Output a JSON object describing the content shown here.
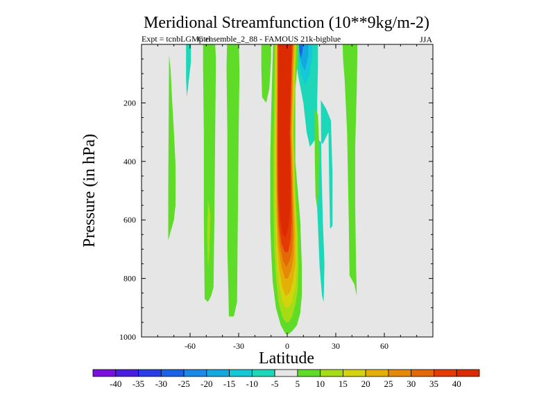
{
  "chart_data": {
    "type": "heatmap",
    "title": "Meridional Streamfunction (10**9kg/m-2)",
    "subtitle_left": "Expt = tcnbLGMp ensemble_2_88 - FAMOUS 21k-bigblue",
    "overlap_text": "Ctrl",
    "subtitle_right": "JJA",
    "xlabel": "Latitude",
    "ylabel": "Pressure (in hPa)",
    "xlim": [
      -90,
      90
    ],
    "ylim": [
      1000,
      0
    ],
    "x_ticks": [
      -60,
      -30,
      0,
      30,
      60
    ],
    "x_tick_labels": [
      "-60",
      "-30",
      "0",
      "30",
      "60"
    ],
    "y_ticks": [
      200,
      400,
      600,
      800,
      1000
    ],
    "y_tick_labels": [
      "200",
      "400",
      "600",
      "800",
      "1000"
    ],
    "background_color": "#e6e6e6",
    "contour_levels": [
      -40,
      -35,
      -30,
      -25,
      -20,
      -15,
      -10,
      -5,
      5,
      10,
      15,
      20,
      25,
      30,
      35,
      40
    ],
    "colorbar_labels": [
      "-40",
      "-35",
      "-30",
      "-25",
      "-20",
      "-15",
      "-10",
      "-5",
      "5",
      "10",
      "15",
      "20",
      "25",
      "30",
      "35",
      "40"
    ],
    "colorbar_colors": [
      "#7a10e0",
      "#4a1ee0",
      "#2a3ee8",
      "#1a62e8",
      "#1a8ae6",
      "#12a8e0",
      "#14c8d8",
      "#1cd8b8",
      "#e6e6e6",
      "#5edc28",
      "#a6dc16",
      "#d4d40e",
      "#e4b008",
      "#e48a08",
      "#e46808",
      "#e43a06",
      "#dc2a02"
    ],
    "contours": [
      {
        "name": "green-band-far-south",
        "value": 5,
        "color": "#5edc28",
        "points": [
          [
            -73,
            0.35
          ],
          [
            -72,
            0.9
          ],
          [
            -71,
            2
          ],
          [
            -70,
            3
          ],
          [
            -69,
            4.1
          ],
          [
            -69,
            5.5
          ],
          [
            -70,
            6
          ],
          [
            -72,
            6.4
          ],
          [
            -73.5,
            6.7
          ],
          [
            -73.5,
            5
          ]
        ]
      },
      {
        "name": "cyan-upper-south",
        "value": -5,
        "color": "#1cd8b8",
        "points": [
          [
            -62.5,
            -0.5
          ],
          [
            -59.5,
            -0.5
          ],
          [
            -59.5,
            0.6
          ],
          [
            -60.5,
            1.1
          ],
          [
            -62,
            1.8
          ],
          [
            -62.5,
            1.2
          ]
        ]
      },
      {
        "name": "green-band-south",
        "value": 5,
        "color": "#5edc28",
        "points": [
          [
            -52,
            -0.5
          ],
          [
            -45,
            -0.5
          ],
          [
            -44,
            0.5
          ],
          [
            -44.5,
            3
          ],
          [
            -45,
            6
          ],
          [
            -45.5,
            8.3
          ],
          [
            -47,
            8.6
          ],
          [
            -49,
            8.8
          ],
          [
            -51,
            8.7
          ],
          [
            -51.5,
            6
          ],
          [
            -51.5,
            3
          ],
          [
            -52,
            0.8
          ]
        ]
      },
      {
        "name": "green-band-south-inner",
        "value": 10,
        "color": "#a6dc16",
        "points": [
          [
            -49,
            5.3
          ],
          [
            -47.5,
            5.8
          ],
          [
            -48,
            7
          ],
          [
            -49,
            7.7
          ],
          [
            -49.5,
            6.5
          ]
        ]
      },
      {
        "name": "green-band-mid-south",
        "value": 5,
        "color": "#5edc28",
        "points": [
          [
            -37,
            -0.5
          ],
          [
            -30,
            -0.5
          ],
          [
            -29.5,
            1
          ],
          [
            -30,
            3
          ],
          [
            -30.5,
            6
          ],
          [
            -31,
            8.8
          ],
          [
            -33,
            9.3
          ],
          [
            -36,
            9.3
          ],
          [
            -37,
            7
          ],
          [
            -37,
            3
          ],
          [
            -37.5,
            0.8
          ]
        ]
      },
      {
        "name": "green-band-near-eq-south",
        "value": 5,
        "color": "#5edc28",
        "points": [
          [
            -16,
            -0.5
          ],
          [
            -10,
            -0.5
          ],
          [
            -10,
            0.5
          ],
          [
            -11,
            1.5
          ],
          [
            -13,
            2
          ],
          [
            -15.5,
            1.8
          ],
          [
            -16,
            0.8
          ]
        ]
      },
      {
        "name": "cyan-band-north",
        "value": -5,
        "color": "#1cd8b8",
        "points": [
          [
            5,
            -0.5
          ],
          [
            19,
            -0.5
          ],
          [
            19,
            0.8
          ],
          [
            18.5,
            2
          ],
          [
            18.5,
            3.5
          ],
          [
            18,
            5
          ],
          [
            19,
            6.2
          ],
          [
            20,
            7.6
          ],
          [
            21.5,
            8.6
          ],
          [
            22.5,
            8.8
          ],
          [
            23,
            7.5
          ],
          [
            22,
            6
          ],
          [
            21,
            3.8
          ],
          [
            20.8,
            1.9
          ],
          [
            24,
            2.2
          ],
          [
            27,
            2.6
          ],
          [
            28,
            4.5
          ],
          [
            28,
            6.2
          ],
          [
            26.5,
            6.3
          ],
          [
            26,
            5
          ],
          [
            25.5,
            3
          ],
          [
            22,
            3.4
          ],
          [
            18,
            3.2
          ],
          [
            14,
            3.5
          ],
          [
            12,
            3
          ],
          [
            10,
            2
          ],
          [
            6.5,
            1
          ],
          [
            5,
            0.2
          ]
        ]
      },
      {
        "name": "green-band-north-mid",
        "value": 5,
        "color": "#5edc28",
        "points": [
          [
            17,
            2.2
          ],
          [
            19,
            2.4
          ],
          [
            20,
            3.8
          ],
          [
            19.5,
            5
          ],
          [
            18.5,
            5.6
          ],
          [
            17.5,
            5.2
          ],
          [
            17,
            3.8
          ]
        ]
      },
      {
        "name": "green-band-north",
        "value": 5,
        "color": "#5edc28",
        "points": [
          [
            34,
            -0.5
          ],
          [
            43.5,
            -0.5
          ],
          [
            43,
            1.5
          ],
          [
            42,
            3.5
          ],
          [
            42,
            5.5
          ],
          [
            42.5,
            7.5
          ],
          [
            43,
            8.6
          ],
          [
            41.5,
            8.2
          ],
          [
            38.5,
            7.9
          ],
          [
            38,
            6
          ],
          [
            37,
            3
          ],
          [
            35.5,
            1.2
          ],
          [
            34.5,
            0.5
          ]
        ]
      },
      {
        "name": "blue-band-north-outer",
        "value": -10,
        "color": "#14c8d8",
        "points": [
          [
            6.5,
            -0.5
          ],
          [
            15.5,
            -0.5
          ],
          [
            15.5,
            0.4
          ],
          [
            13.5,
            1.1
          ],
          [
            11,
            1.4
          ],
          [
            8.5,
            1
          ],
          [
            7,
            0.4
          ]
        ]
      },
      {
        "name": "blue-band-north-mid",
        "value": -15,
        "color": "#12a8e0",
        "points": [
          [
            7,
            -0.5
          ],
          [
            13.5,
            -0.5
          ],
          [
            13,
            0.4
          ],
          [
            11,
            0.9
          ],
          [
            9,
            0.7
          ],
          [
            7.5,
            0.3
          ]
        ]
      },
      {
        "name": "blue-band-north-inner",
        "value": -20,
        "color": "#1a62e8",
        "points": [
          [
            7,
            -0.5
          ],
          [
            10,
            -0.5
          ],
          [
            9.5,
            0.2
          ],
          [
            8.5,
            0.5
          ],
          [
            7.5,
            0.2
          ]
        ]
      },
      {
        "name": "blue-band-north-core",
        "value": -30,
        "color": "#2a3ee8",
        "points": [
          [
            7.5,
            -0.5
          ],
          [
            9.5,
            -0.5
          ],
          [
            9,
            0
          ]
        ]
      },
      {
        "name": "red-plume-l5",
        "value": 5,
        "color": "#5edc28",
        "points": [
          [
            -8.5,
            -0.5
          ],
          [
            7,
            -0.5
          ],
          [
            7,
            0.3
          ],
          [
            5,
            1.5
          ],
          [
            5,
            4
          ],
          [
            8,
            6
          ],
          [
            9,
            7.5
          ],
          [
            9,
            8.6
          ],
          [
            8,
            9.2
          ],
          [
            6,
            9.6
          ],
          [
            3,
            9.8
          ],
          [
            1,
            9.9
          ],
          [
            -1,
            9.9
          ],
          [
            -4,
            9.6
          ],
          [
            -7,
            9
          ],
          [
            -9,
            8.1
          ],
          [
            -10,
            7
          ],
          [
            -10.5,
            6
          ],
          [
            -10.5,
            4
          ],
          [
            -10,
            2.5
          ],
          [
            -9.5,
            1.5
          ]
        ]
      },
      {
        "name": "red-plume-l10",
        "value": 10,
        "color": "#a6dc16",
        "points": [
          [
            -7.5,
            -0.5
          ],
          [
            6,
            -0.5
          ],
          [
            5,
            1
          ],
          [
            4,
            3
          ],
          [
            5,
            5
          ],
          [
            6.5,
            6.5
          ],
          [
            7,
            7.6
          ],
          [
            6.5,
            8.4
          ],
          [
            5,
            8.9
          ],
          [
            3,
            9.3
          ],
          [
            1,
            9.5
          ],
          [
            -1,
            9.5
          ],
          [
            -3,
            9.3
          ],
          [
            -5.5,
            8.8
          ],
          [
            -7,
            8
          ],
          [
            -8,
            7
          ],
          [
            -8.5,
            5.5
          ],
          [
            -8.5,
            3.5
          ],
          [
            -8,
            2
          ]
        ]
      },
      {
        "name": "red-plume-l15",
        "value": 15,
        "color": "#d4d40e",
        "points": [
          [
            -7,
            -0.5
          ],
          [
            5.5,
            -0.5
          ],
          [
            4.5,
            1
          ],
          [
            3.5,
            3
          ],
          [
            4.5,
            5
          ],
          [
            5.8,
            6.5
          ],
          [
            6,
            7.6
          ],
          [
            5,
            8.3
          ],
          [
            3,
            8.8
          ],
          [
            1,
            9
          ],
          [
            -1,
            9
          ],
          [
            -3,
            8.8
          ],
          [
            -5,
            8.2
          ],
          [
            -6.5,
            7.4
          ],
          [
            -7.2,
            6.2
          ],
          [
            -7.5,
            4.5
          ],
          [
            -7.5,
            3
          ],
          [
            -7.2,
            1.5
          ]
        ]
      },
      {
        "name": "red-plume-l20",
        "value": 20,
        "color": "#e4b008",
        "points": [
          [
            -6.5,
            -0.5
          ],
          [
            5,
            -0.5
          ],
          [
            4,
            1
          ],
          [
            3,
            3
          ],
          [
            4,
            5
          ],
          [
            5,
            6.5
          ],
          [
            5,
            7.5
          ],
          [
            3.5,
            8.1
          ],
          [
            1.5,
            8.5
          ],
          [
            -1,
            8.6
          ],
          [
            -3,
            8.3
          ],
          [
            -5,
            7.7
          ],
          [
            -6.2,
            6.8
          ],
          [
            -6.8,
            5.5
          ],
          [
            -7,
            4
          ],
          [
            -6.8,
            2.5
          ],
          [
            -6.6,
            1.2
          ]
        ]
      },
      {
        "name": "red-plume-l25",
        "value": 25,
        "color": "#e48a08",
        "points": [
          [
            -6.2,
            -0.5
          ],
          [
            4.5,
            -0.5
          ],
          [
            3.5,
            1
          ],
          [
            2.6,
            3
          ],
          [
            3.5,
            5
          ],
          [
            4.2,
            6.5
          ],
          [
            4,
            7.2
          ],
          [
            2.5,
            7.7
          ],
          [
            0.5,
            8
          ],
          [
            -1.5,
            8
          ],
          [
            -3.5,
            7.6
          ],
          [
            -5.3,
            6.9
          ],
          [
            -6.2,
            6
          ],
          [
            -6.5,
            4.5
          ],
          [
            -6.4,
            3
          ],
          [
            -6.2,
            1.5
          ]
        ]
      },
      {
        "name": "red-plume-l30",
        "value": 30,
        "color": "#e46808",
        "points": [
          [
            -6,
            -0.5
          ],
          [
            4,
            -0.5
          ],
          [
            3,
            1
          ],
          [
            2.2,
            3
          ],
          [
            3,
            5
          ],
          [
            3.5,
            6.3
          ],
          [
            3,
            7
          ],
          [
            1.5,
            7.4
          ],
          [
            -0.5,
            7.6
          ],
          [
            -2.5,
            7.4
          ],
          [
            -4.3,
            6.9
          ],
          [
            -5.5,
            6.2
          ],
          [
            -6.1,
            5
          ],
          [
            -6.2,
            3.5
          ],
          [
            -6,
            2
          ],
          [
            -6,
            0.8
          ]
        ]
      },
      {
        "name": "red-plume-l35",
        "value": 35,
        "color": "#e43a06",
        "points": [
          [
            -5.8,
            -0.5
          ],
          [
            3.5,
            -0.5
          ],
          [
            2.6,
            1
          ],
          [
            1.8,
            3
          ],
          [
            2.5,
            5
          ],
          [
            2.8,
            6
          ],
          [
            2,
            6.7
          ],
          [
            0.5,
            7.1
          ],
          [
            -1.5,
            7.1
          ],
          [
            -3.5,
            6.8
          ],
          [
            -5,
            6.2
          ],
          [
            -5.8,
            5.2
          ],
          [
            -6,
            3.8
          ],
          [
            -5.9,
            2.3
          ],
          [
            -5.8,
            1
          ]
        ]
      },
      {
        "name": "red-plume-l40",
        "value": 40,
        "color": "#dc2a02",
        "points": [
          [
            -5.5,
            -0.5
          ],
          [
            3,
            -0.5
          ],
          [
            2.3,
            1
          ],
          [
            1.5,
            3
          ],
          [
            2,
            4.5
          ],
          [
            2,
            5.6
          ],
          [
            0.8,
            6.2
          ],
          [
            -0.8,
            6.6
          ],
          [
            -2.7,
            6.5
          ],
          [
            -4.3,
            6
          ],
          [
            -5.3,
            5.2
          ],
          [
            -5.7,
            4
          ],
          [
            -5.7,
            2.6
          ],
          [
            -5.6,
            1.2
          ]
        ]
      }
    ]
  }
}
